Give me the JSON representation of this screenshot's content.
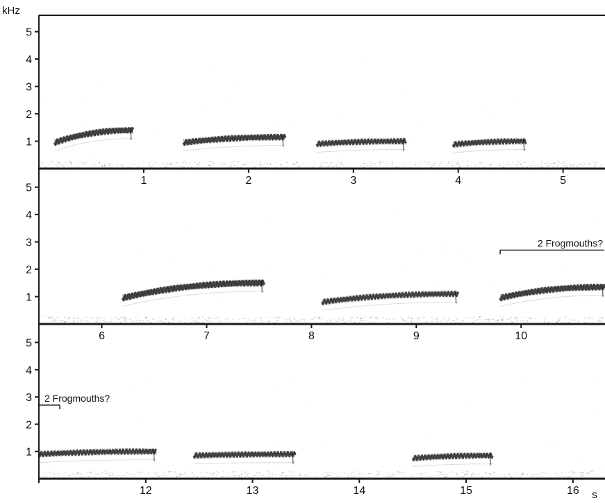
{
  "chart_data": {
    "type": "spectrogram",
    "y_unit": "kHz",
    "x_unit": "s",
    "ink_color": "#1a1a1a",
    "panels": [
      {
        "x_range": [
          0,
          5.4
        ],
        "y_range": [
          0,
          5.6
        ],
        "x_ticks": [
          1,
          2,
          3,
          4,
          5
        ],
        "y_ticks": [
          1,
          2,
          3,
          4,
          5
        ],
        "annotations": [],
        "notes": [
          {
            "t_start": 0.15,
            "t_end": 0.9,
            "f_start": 0.95,
            "f_end": 1.4,
            "intensity": 0.85
          },
          {
            "t_start": 1.38,
            "t_end": 2.35,
            "f_start": 0.95,
            "f_end": 1.15,
            "intensity": 0.8
          },
          {
            "t_start": 2.65,
            "t_end": 3.5,
            "f_start": 0.9,
            "f_end": 1.0,
            "intensity": 0.7
          },
          {
            "t_start": 3.95,
            "t_end": 4.65,
            "f_start": 0.88,
            "f_end": 1.0,
            "intensity": 0.7
          }
        ]
      },
      {
        "x_range": [
          5.4,
          10.8
        ],
        "y_range": [
          0,
          5.6
        ],
        "x_ticks": [
          6,
          7,
          8,
          9,
          10
        ],
        "y_ticks": [
          1,
          2,
          3,
          4,
          5
        ],
        "annotations": [
          {
            "label": "2 Frogmouths?",
            "t_start": 9.8,
            "t_end": 10.8,
            "f": 2.7
          }
        ],
        "notes": [
          {
            "t_start": 6.2,
            "t_end": 7.55,
            "f_start": 0.95,
            "f_end": 1.5,
            "intensity": 0.9
          },
          {
            "t_start": 8.1,
            "t_end": 9.4,
            "f_start": 0.8,
            "f_end": 1.1,
            "intensity": 0.7
          },
          {
            "t_start": 9.8,
            "t_end": 10.8,
            "f_start": 0.95,
            "f_end": 1.35,
            "intensity": 0.85
          }
        ]
      },
      {
        "x_range": [
          11,
          16.3
        ],
        "y_range": [
          0,
          5.6
        ],
        "x_ticks": [
          12,
          13,
          14,
          15,
          16
        ],
        "y_ticks": [
          1,
          2,
          3,
          4,
          5
        ],
        "annotations": [
          {
            "label": "2 Frogmouths?",
            "t_start": 11,
            "t_end": 11.2,
            "f": 2.7
          }
        ],
        "notes": [
          {
            "t_start": 11.0,
            "t_end": 12.1,
            "f_start": 0.9,
            "f_end": 1.0,
            "intensity": 0.7
          },
          {
            "t_start": 12.45,
            "t_end": 13.4,
            "f_start": 0.85,
            "f_end": 0.9,
            "intensity": 0.7
          },
          {
            "t_start": 14.5,
            "t_end": 15.25,
            "f_start": 0.75,
            "f_end": 0.85,
            "intensity": 0.7
          }
        ]
      }
    ]
  }
}
